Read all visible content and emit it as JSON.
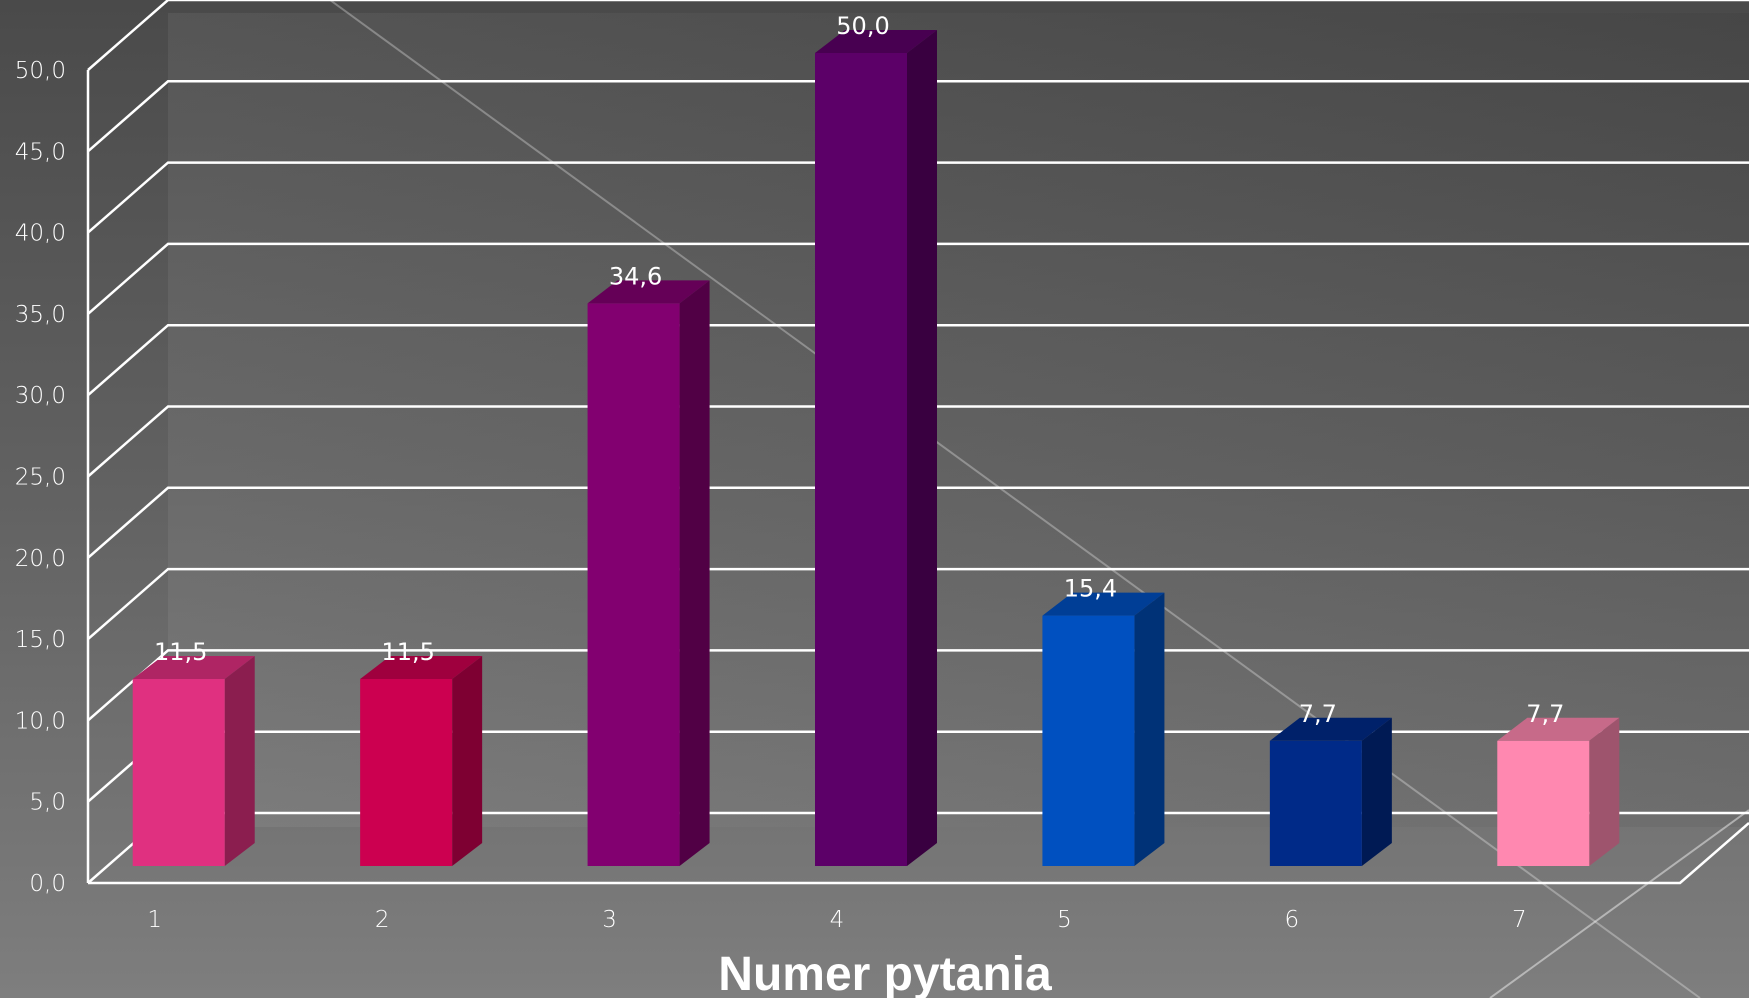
{
  "chart_data": {
    "type": "bar",
    "categories": [
      "1",
      "2",
      "3",
      "4",
      "5",
      "6",
      "7"
    ],
    "values": [
      11.5,
      11.5,
      34.6,
      50.0,
      15.4,
      7.7,
      7.7
    ],
    "value_labels": [
      "11,5",
      "11,5",
      "34,6",
      "50,0",
      "15,4",
      "7,7",
      "7,7"
    ],
    "bar_colors": [
      "#e03080",
      "#cc0050",
      "#820070",
      "#5c0068",
      "#0050c0",
      "#002a88",
      "#ff88b0"
    ],
    "xlabel": "Numer pytania",
    "ylabel": "",
    "ylim": [
      0,
      50
    ],
    "yticks": [
      "0,0",
      "5,0",
      "10,0",
      "15,0",
      "20,0",
      "25,0",
      "30,0",
      "35,0",
      "40,0",
      "45,0",
      "50,0"
    ],
    "grid": true,
    "style": "3d"
  }
}
